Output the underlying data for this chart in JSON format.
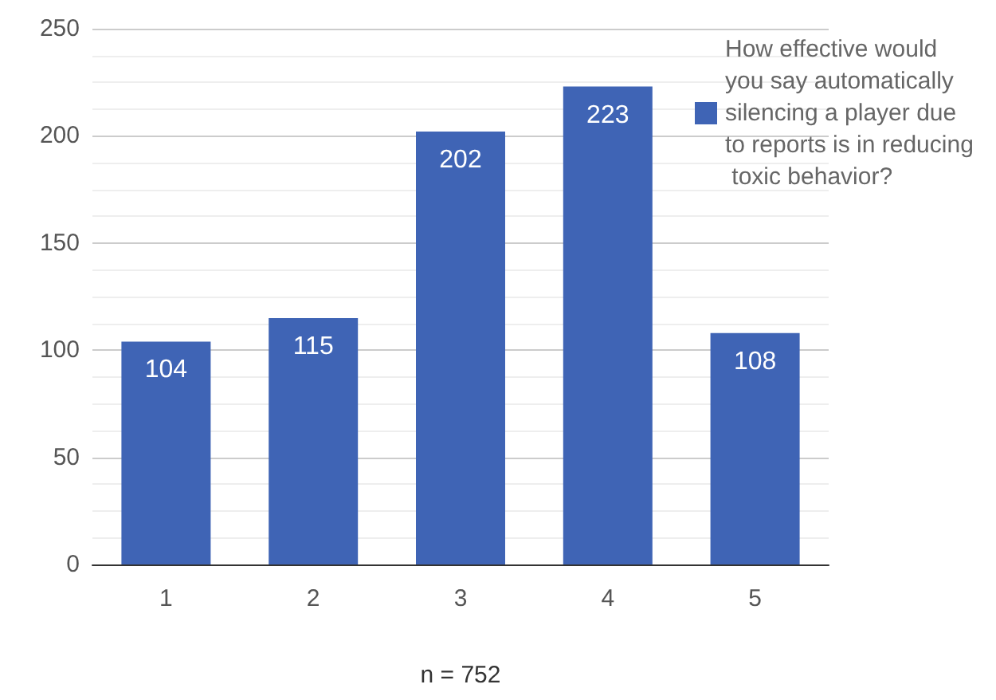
{
  "chart_data": {
    "type": "bar",
    "xlabel": "n = 752",
    "categories": [
      "1",
      "2",
      "3",
      "4",
      "5"
    ],
    "series": [
      {
        "name": "How effective would you say automatically silencing a player due to reports is in reducing toxic behavior?",
        "color": "#3f64b5",
        "values": [
          104,
          115,
          202,
          223,
          108
        ]
      }
    ],
    "ylim": [
      0,
      250
    ],
    "yticks": [
      0,
      50,
      100,
      150,
      200,
      250
    ],
    "grid": true,
    "legend": "top right",
    "data_labels": true
  }
}
